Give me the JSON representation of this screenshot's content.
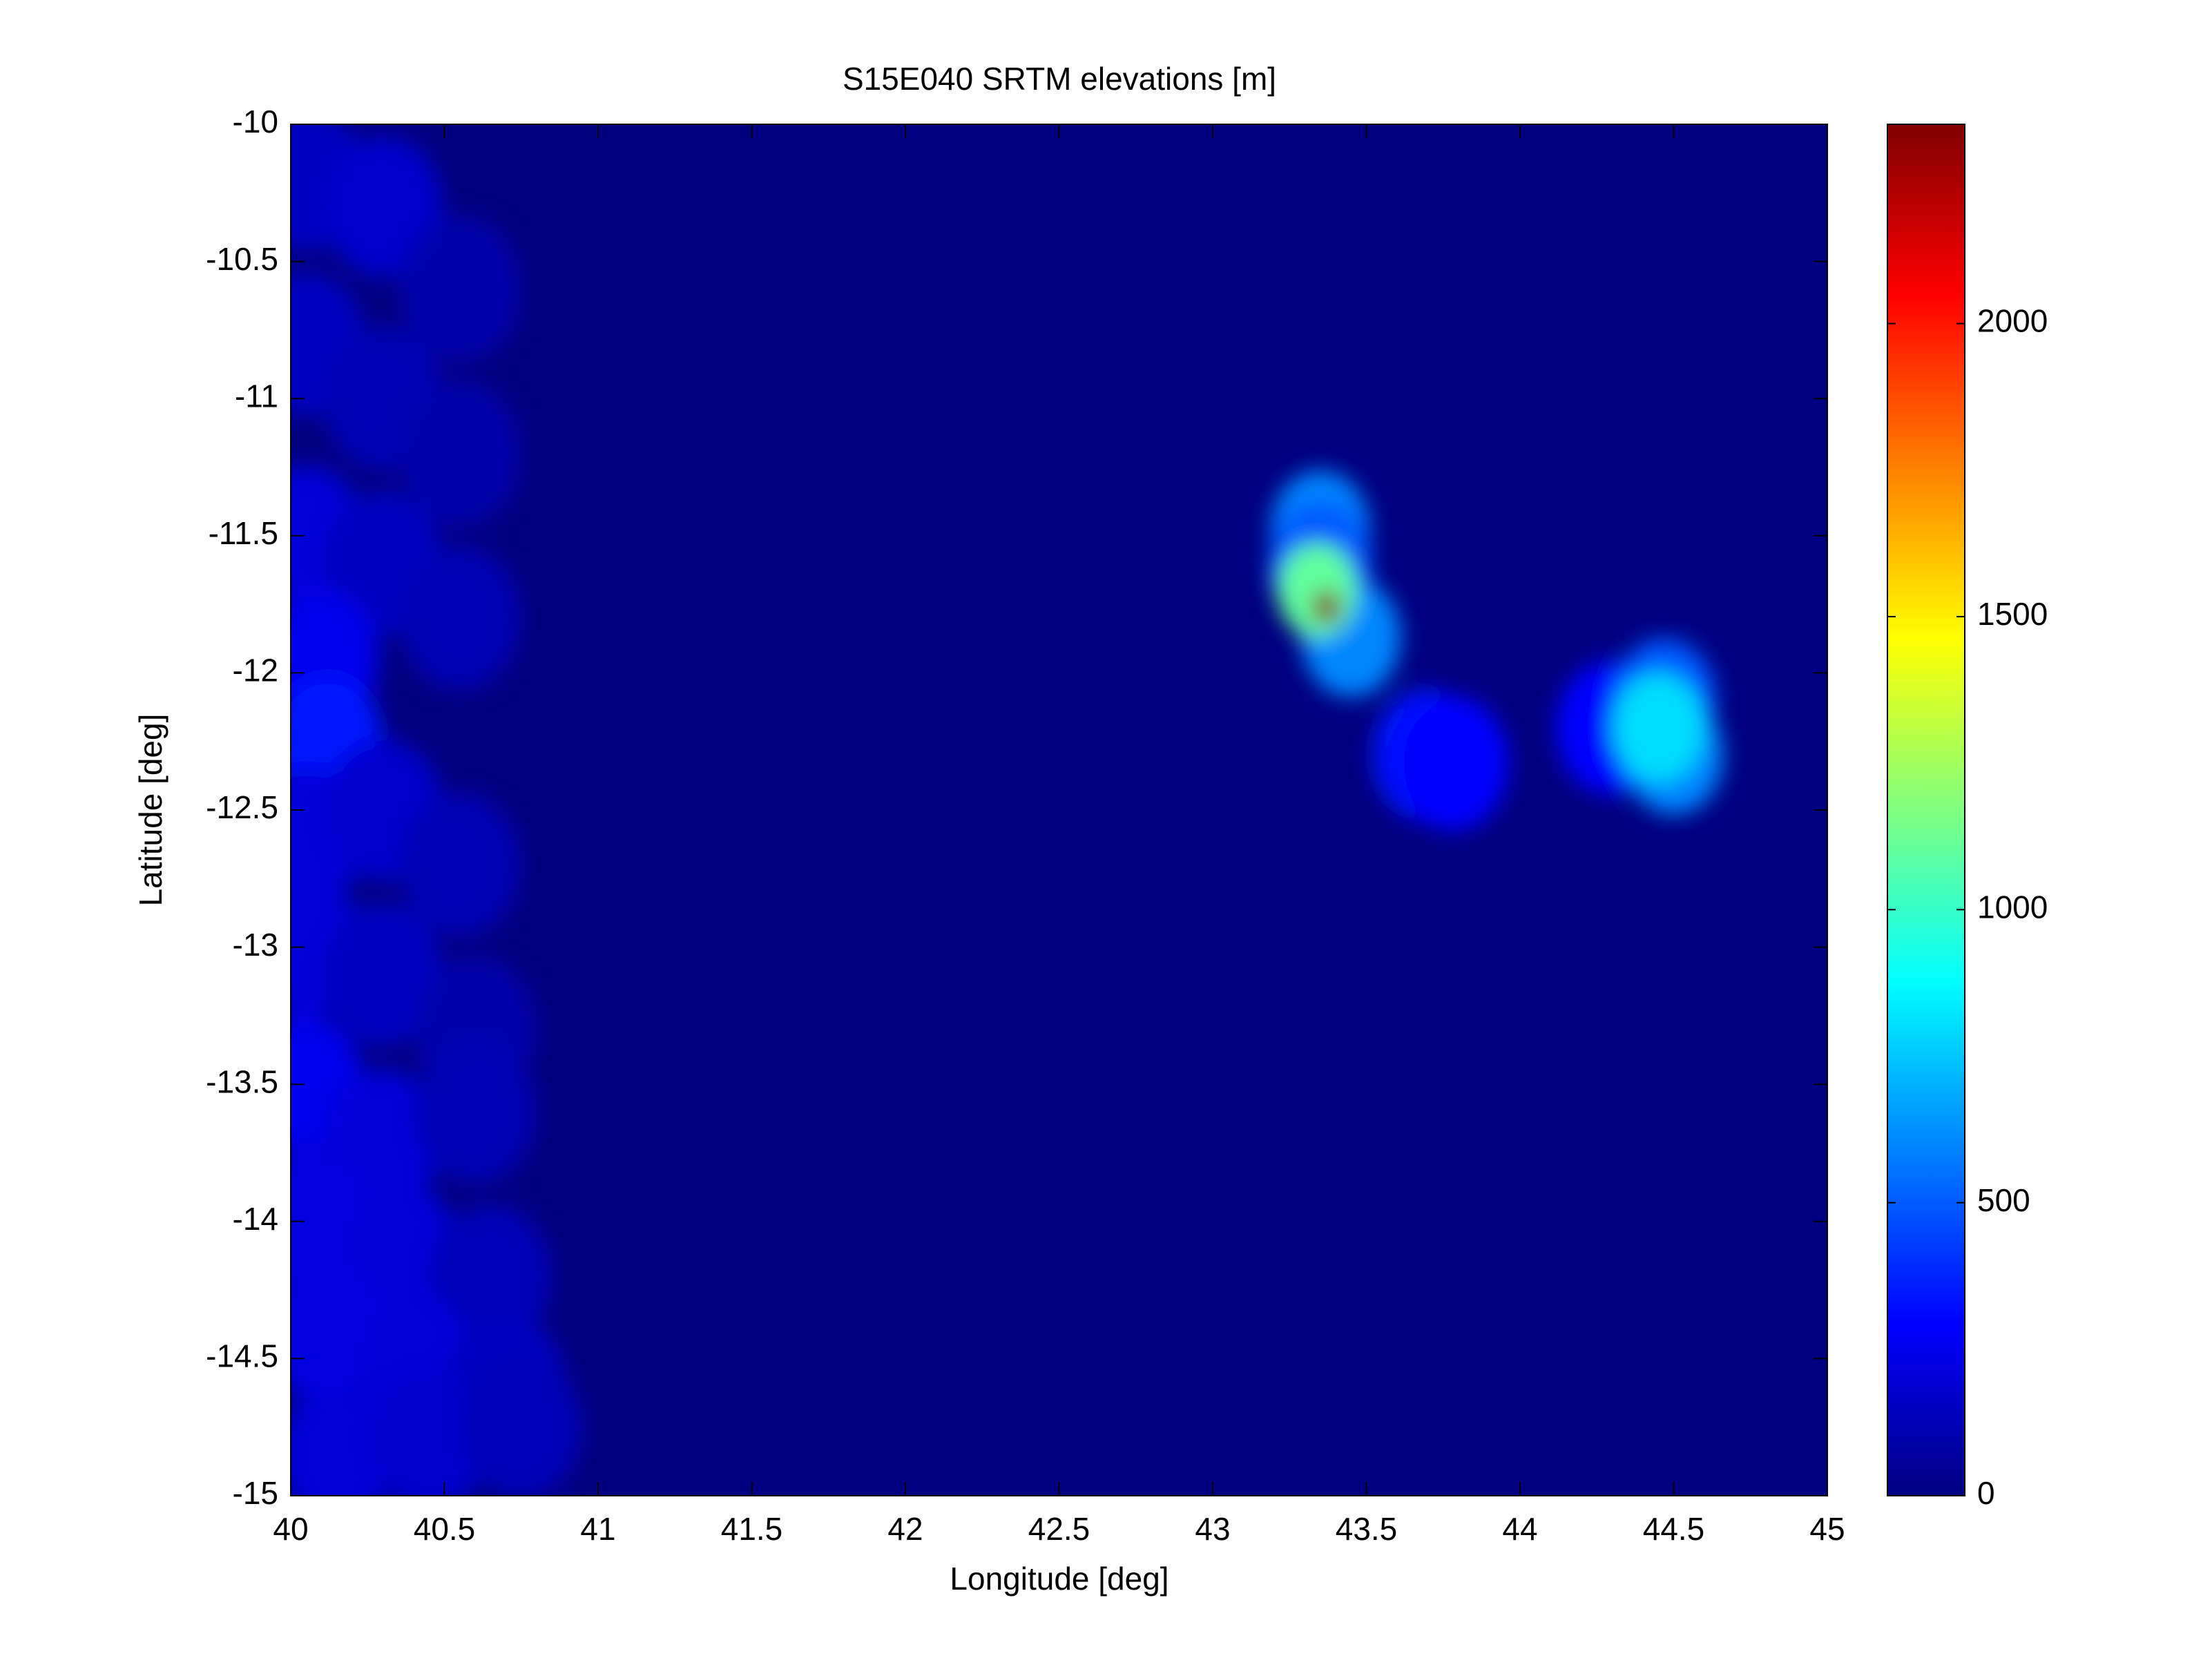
{
  "chart_data": {
    "type": "heatmap",
    "title": "S15E040 SRTM elevations [m]",
    "x_label": "Longitude [deg]",
    "y_label": "Latitude [deg]",
    "colormap": "jet",
    "x": [
      40.05,
      40.3,
      40.55,
      40.05,
      40.3,
      40.55,
      40.05,
      40.3,
      40.55,
      40.1,
      40.12,
      40.05,
      40.3,
      40.55,
      40.05,
      40.3,
      40.6,
      40.05,
      40.3,
      40.6,
      40.05,
      40.35,
      40.65,
      40.1,
      40.4,
      40.7,
      40.15,
      40.45,
      40.75,
      43.35,
      43.35,
      43.45,
      43.34,
      43.37,
      43.7,
      43.78,
      44.3,
      44.47,
      44.5,
      44.45
    ],
    "y": [
      -10.2,
      -10.3,
      -10.6,
      -10.8,
      -11.0,
      -11.2,
      -11.5,
      -11.6,
      -11.8,
      -11.95,
      -12.25,
      -12.6,
      -12.5,
      -12.7,
      -13.0,
      -13.1,
      -13.3,
      -13.5,
      -13.7,
      -13.6,
      -14.0,
      -14.1,
      -14.2,
      -14.4,
      -14.5,
      -14.6,
      -14.85,
      -14.8,
      -14.75,
      -11.48,
      -11.6,
      -11.87,
      -11.7,
      -11.76,
      -12.3,
      -12.33,
      -12.2,
      -12.1,
      -12.3,
      -12.2
    ],
    "values": [
      150,
      180,
      100,
      150,
      120,
      100,
      200,
      150,
      120,
      250,
      350,
      200,
      180,
      120,
      200,
      150,
      100,
      250,
      200,
      120,
      220,
      200,
      130,
      220,
      200,
      150,
      200,
      180,
      130,
      600,
      500,
      600,
      1100,
      2340,
      350,
      300,
      300,
      500,
      600,
      800
    ],
    "xlim": [
      40,
      45
    ],
    "xticks": [
      40,
      40.5,
      41,
      41.5,
      42,
      42.5,
      43,
      43.5,
      44,
      44.5,
      45
    ],
    "ylim": [
      -15,
      -10
    ],
    "yticks": [
      -15,
      -14.5,
      -14,
      -13.5,
      -13,
      -12.5,
      -12,
      -11.5,
      -11,
      -10.5,
      -10
    ],
    "clim": [
      0,
      2340
    ],
    "cticks": [
      0,
      500,
      1000,
      1500,
      2000
    ]
  }
}
